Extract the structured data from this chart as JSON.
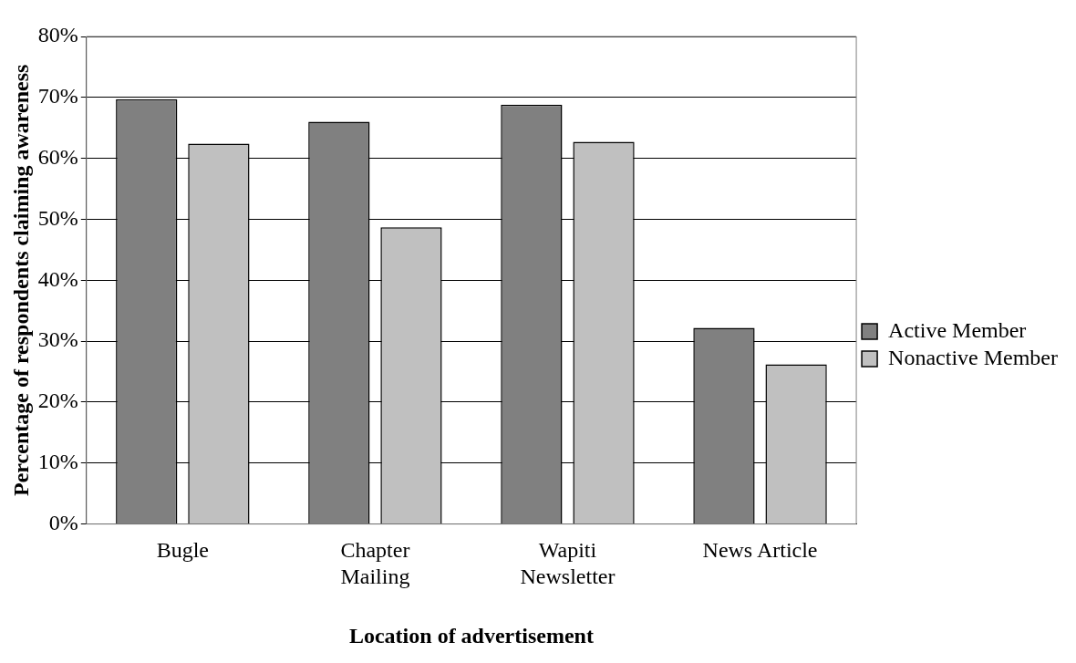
{
  "chart_data": {
    "type": "bar",
    "xlabel": "Location of advertisement",
    "ylabel": "Percentage of respondents claiming awareness",
    "categories": [
      "Bugle",
      "Chapter\nMailing",
      "Wapiti\nNewsletter",
      "News Article"
    ],
    "series": [
      {
        "name": "Active Member",
        "color": "#808080",
        "values": [
          69.7,
          66,
          68.8,
          32.2
        ]
      },
      {
        "name": "Nonactive Member",
        "color": "#c0c0c0",
        "values": [
          62.4,
          48.7,
          62.7,
          26.2
        ]
      }
    ],
    "ylim": [
      0,
      80
    ],
    "yticks": [
      {
        "value": 0,
        "label": "0%"
      },
      {
        "value": 10,
        "label": "10%"
      },
      {
        "value": 20,
        "label": "20%"
      },
      {
        "value": 30,
        "label": "30%"
      },
      {
        "value": 40,
        "label": "40%"
      },
      {
        "value": 50,
        "label": "50%"
      },
      {
        "value": 60,
        "label": "60%"
      },
      {
        "value": 70,
        "label": "70%"
      },
      {
        "value": 80,
        "label": "80%"
      }
    ],
    "grid": "y",
    "legend": "right"
  }
}
